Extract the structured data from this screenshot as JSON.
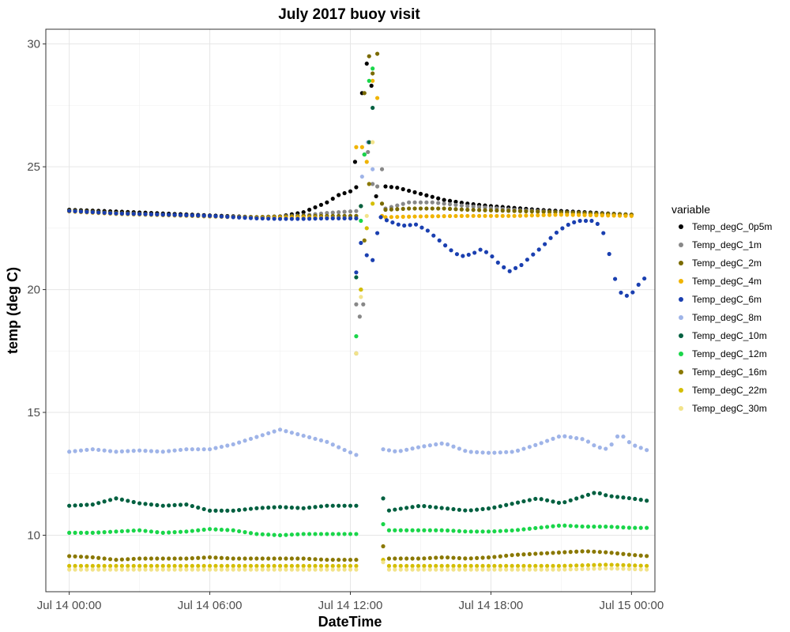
{
  "chart_data": {
    "type": "scatter",
    "title": "July 2017 buoy visit",
    "xlabel": "DateTime",
    "ylabel": "temp (deg C)",
    "x_unit": "hours",
    "xlim": [
      -1,
      25
    ],
    "ylim": [
      7.7,
      30.6
    ],
    "x_ticks": [
      {
        "value": 0,
        "label": "Jul 14 00:00"
      },
      {
        "value": 6,
        "label": "Jul 14 06:00"
      },
      {
        "value": 12,
        "label": "Jul 14 12:00"
      },
      {
        "value": 18,
        "label": "Jul 14 18:00"
      },
      {
        "value": 24,
        "label": "Jul 15 00:00"
      }
    ],
    "y_ticks": [
      10,
      15,
      20,
      25,
      30
    ],
    "grid": true,
    "legend_title": "variable",
    "legend_position": "right",
    "series": [
      {
        "name": "Temp_degC_0p5m",
        "color": "#000000",
        "points": [
          [
            0,
            23.25
          ],
          [
            2,
            23.18
          ],
          [
            4,
            23.1
          ],
          [
            6,
            23.02
          ],
          [
            8,
            22.95
          ],
          [
            9,
            22.98
          ],
          [
            10,
            23.15
          ],
          [
            11,
            23.55
          ],
          [
            11.5,
            23.85
          ],
          [
            12,
            24.0
          ],
          [
            12.3,
            24.2
          ],
          [
            12.6,
            24.3
          ],
          [
            13.0,
            24.35
          ],
          [
            13.2,
            24.4
          ],
          [
            13.5,
            24.2
          ],
          [
            14,
            24.15
          ],
          [
            15,
            23.9
          ],
          [
            16,
            23.65
          ],
          [
            17,
            23.5
          ],
          [
            18,
            23.4
          ],
          [
            20,
            23.25
          ],
          [
            22,
            23.15
          ],
          [
            24,
            23.05
          ]
        ],
        "spike": [
          [
            12.2,
            25.2
          ],
          [
            12.5,
            28.0
          ],
          [
            12.7,
            29.2
          ],
          [
            12.9,
            28.3
          ],
          [
            13.1,
            23.8
          ]
        ]
      },
      {
        "name": "Temp_degC_1m",
        "color": "#888888",
        "points": [
          [
            0,
            23.2
          ],
          [
            2,
            23.12
          ],
          [
            4,
            23.05
          ],
          [
            6,
            22.98
          ],
          [
            8,
            22.95
          ],
          [
            10,
            23.02
          ],
          [
            11,
            23.12
          ],
          [
            12.3,
            23.2
          ],
          [
            13.5,
            23.3
          ],
          [
            14.5,
            23.55
          ],
          [
            15.5,
            23.55
          ],
          [
            17,
            23.4
          ],
          [
            19,
            23.25
          ],
          [
            21,
            23.15
          ],
          [
            24,
            23.05
          ]
        ],
        "spike": [
          [
            12.25,
            19.4
          ],
          [
            12.4,
            18.9
          ],
          [
            12.55,
            19.4
          ],
          [
            12.75,
            25.6
          ],
          [
            12.95,
            24.3
          ],
          [
            13.15,
            24.2
          ],
          [
            13.35,
            24.9
          ]
        ]
      },
      {
        "name": "Temp_degC_2m",
        "color": "#7a6a00",
        "points": [
          [
            0,
            23.22
          ],
          [
            2,
            23.12
          ],
          [
            4,
            23.05
          ],
          [
            6,
            22.98
          ],
          [
            8,
            22.95
          ],
          [
            10,
            23.0
          ],
          [
            12.3,
            23.0
          ],
          [
            13.5,
            23.25
          ],
          [
            14.5,
            23.3
          ],
          [
            16,
            23.3
          ],
          [
            17,
            23.25
          ],
          [
            19,
            23.2
          ],
          [
            21,
            23.15
          ],
          [
            24,
            23.05
          ]
        ],
        "spike": [
          [
            12.25,
            17.4
          ],
          [
            12.45,
            23.4
          ],
          [
            12.6,
            28.0
          ],
          [
            12.8,
            29.5
          ],
          [
            12.95,
            28.8
          ],
          [
            13.15,
            29.6
          ],
          [
            13.35,
            23.5
          ]
        ]
      },
      {
        "name": "Temp_degC_4m",
        "color": "#f0b400",
        "points": [
          [
            0,
            23.18
          ],
          [
            2,
            23.08
          ],
          [
            4,
            23.03
          ],
          [
            6,
            22.98
          ],
          [
            8,
            22.92
          ],
          [
            10,
            22.95
          ],
          [
            12.3,
            22.9
          ],
          [
            13.5,
            22.95
          ],
          [
            15,
            22.98
          ],
          [
            17,
            23.0
          ],
          [
            19,
            23.0
          ],
          [
            21,
            23.05
          ],
          [
            24,
            23.0
          ]
        ],
        "spike": [
          [
            12.25,
            25.8
          ],
          [
            12.5,
            25.8
          ],
          [
            12.7,
            25.2
          ],
          [
            12.95,
            28.5
          ],
          [
            13.15,
            27.8
          ],
          [
            13.35,
            23.0
          ]
        ]
      },
      {
        "name": "Temp_degC_6m",
        "color": "#1a3fb0",
        "points": [
          [
            0,
            23.2
          ],
          [
            2,
            23.1
          ],
          [
            4,
            23.05
          ],
          [
            6,
            23.0
          ],
          [
            7,
            22.95
          ],
          [
            8,
            22.9
          ],
          [
            9,
            22.88
          ],
          [
            10,
            22.88
          ],
          [
            11,
            22.9
          ],
          [
            12.3,
            22.9
          ],
          [
            13.3,
            22.95
          ],
          [
            13.6,
            22.8
          ],
          [
            14.2,
            22.6
          ],
          [
            14.8,
            22.65
          ],
          [
            15.3,
            22.4
          ],
          [
            15.8,
            22.0
          ],
          [
            16.3,
            21.6
          ],
          [
            16.7,
            21.35
          ],
          [
            17.2,
            21.45
          ],
          [
            17.6,
            21.65
          ],
          [
            18.0,
            21.4
          ],
          [
            18.4,
            21.0
          ],
          [
            18.8,
            20.75
          ],
          [
            19.3,
            21.0
          ],
          [
            19.7,
            21.35
          ],
          [
            20.2,
            21.75
          ],
          [
            20.7,
            22.25
          ],
          [
            21.2,
            22.6
          ],
          [
            21.7,
            22.8
          ],
          [
            22.3,
            22.8
          ],
          [
            22.7,
            22.6
          ],
          [
            23.0,
            21.7
          ],
          [
            23.2,
            20.7
          ],
          [
            23.5,
            19.9
          ],
          [
            23.9,
            19.7
          ],
          [
            24.3,
            20.2
          ],
          [
            24.7,
            20.6
          ]
        ],
        "spike": [
          [
            12.25,
            20.7
          ],
          [
            12.45,
            21.9
          ],
          [
            12.7,
            21.4
          ],
          [
            12.95,
            21.2
          ],
          [
            13.15,
            22.3
          ]
        ]
      },
      {
        "name": "Temp_degC_8m",
        "color": "#9fb4e8",
        "points": [
          [
            0,
            13.4
          ],
          [
            1,
            13.5
          ],
          [
            2,
            13.4
          ],
          [
            3,
            13.45
          ],
          [
            4,
            13.4
          ],
          [
            5,
            13.5
          ],
          [
            6,
            13.5
          ],
          [
            7,
            13.7
          ],
          [
            8,
            14.0
          ],
          [
            9,
            14.3
          ],
          [
            10,
            14.05
          ],
          [
            11,
            13.8
          ],
          [
            11.8,
            13.45
          ],
          [
            12.3,
            13.25
          ],
          [
            13.4,
            13.5
          ],
          [
            14,
            13.4
          ],
          [
            15,
            13.6
          ],
          [
            16,
            13.75
          ],
          [
            17,
            13.4
          ],
          [
            18,
            13.35
          ],
          [
            19,
            13.4
          ],
          [
            20,
            13.7
          ],
          [
            21,
            14.05
          ],
          [
            22,
            13.9
          ],
          [
            22.5,
            13.6
          ],
          [
            23,
            13.5
          ],
          [
            23.5,
            14.15
          ],
          [
            24,
            13.7
          ],
          [
            24.7,
            13.45
          ]
        ],
        "spike": [
          [
            12.5,
            24.6
          ],
          [
            12.75,
            26.0
          ],
          [
            12.95,
            24.9
          ]
        ]
      },
      {
        "name": "Temp_degC_10m",
        "color": "#006040",
        "points": [
          [
            0,
            11.2
          ],
          [
            1,
            11.25
          ],
          [
            2,
            11.5
          ],
          [
            3,
            11.3
          ],
          [
            4,
            11.2
          ],
          [
            5,
            11.25
          ],
          [
            6,
            11.0
          ],
          [
            7,
            11.0
          ],
          [
            8,
            11.1
          ],
          [
            9,
            11.15
          ],
          [
            10,
            11.1
          ],
          [
            11,
            11.2
          ],
          [
            12.3,
            11.2
          ],
          [
            13.4,
            11.5
          ],
          [
            13.6,
            11.0
          ],
          [
            15,
            11.2
          ],
          [
            16,
            11.1
          ],
          [
            17,
            11.0
          ],
          [
            18,
            11.1
          ],
          [
            19,
            11.3
          ],
          [
            20,
            11.5
          ],
          [
            21,
            11.3
          ],
          [
            22,
            11.6
          ],
          [
            22.5,
            11.75
          ],
          [
            23,
            11.6
          ],
          [
            24,
            11.5
          ],
          [
            24.7,
            11.4
          ]
        ],
        "spike": [
          [
            12.25,
            20.5
          ],
          [
            12.45,
            23.4
          ],
          [
            12.6,
            25.5
          ],
          [
            12.8,
            26.0
          ],
          [
            12.95,
            27.4
          ]
        ]
      },
      {
        "name": "Temp_degC_12m",
        "color": "#1ad64a",
        "points": [
          [
            0,
            10.1
          ],
          [
            1,
            10.1
          ],
          [
            2,
            10.15
          ],
          [
            3,
            10.2
          ],
          [
            4,
            10.1
          ],
          [
            5,
            10.15
          ],
          [
            6,
            10.25
          ],
          [
            7,
            10.2
          ],
          [
            8,
            10.05
          ],
          [
            9,
            10.0
          ],
          [
            10,
            10.05
          ],
          [
            11,
            10.05
          ],
          [
            12.3,
            10.05
          ],
          [
            13.4,
            10.45
          ],
          [
            13.6,
            10.2
          ],
          [
            15,
            10.2
          ],
          [
            16,
            10.2
          ],
          [
            17,
            10.15
          ],
          [
            18,
            10.15
          ],
          [
            19,
            10.2
          ],
          [
            20,
            10.3
          ],
          [
            21,
            10.4
          ],
          [
            22,
            10.35
          ],
          [
            23,
            10.35
          ],
          [
            24,
            10.3
          ],
          [
            24.7,
            10.3
          ]
        ],
        "spike": [
          [
            12.25,
            18.1
          ],
          [
            12.45,
            22.8
          ],
          [
            12.6,
            25.5
          ],
          [
            12.8,
            28.5
          ],
          [
            12.95,
            29.0
          ]
        ]
      },
      {
        "name": "Temp_degC_16m",
        "color": "#8a7800",
        "points": [
          [
            0,
            9.15
          ],
          [
            1,
            9.1
          ],
          [
            2,
            9.0
          ],
          [
            3,
            9.05
          ],
          [
            4,
            9.05
          ],
          [
            5,
            9.05
          ],
          [
            6,
            9.1
          ],
          [
            7,
            9.05
          ],
          [
            8,
            9.05
          ],
          [
            9,
            9.05
          ],
          [
            10,
            9.05
          ],
          [
            11,
            9.0
          ],
          [
            12.3,
            9.0
          ],
          [
            13.4,
            9.55
          ],
          [
            13.6,
            9.05
          ],
          [
            15,
            9.05
          ],
          [
            16,
            9.1
          ],
          [
            17,
            9.05
          ],
          [
            18,
            9.1
          ],
          [
            19,
            9.2
          ],
          [
            20,
            9.25
          ],
          [
            21,
            9.3
          ],
          [
            22,
            9.35
          ],
          [
            23,
            9.3
          ],
          [
            24,
            9.2
          ],
          [
            24.7,
            9.15
          ]
        ],
        "spike": [
          [
            12.45,
            20.0
          ],
          [
            12.6,
            22.0
          ],
          [
            12.8,
            24.3
          ]
        ]
      },
      {
        "name": "Temp_degC_22m",
        "color": "#d4be00",
        "points": [
          [
            0,
            8.75
          ],
          [
            2,
            8.75
          ],
          [
            4,
            8.75
          ],
          [
            6,
            8.75
          ],
          [
            8,
            8.75
          ],
          [
            10,
            8.75
          ],
          [
            12.3,
            8.75
          ],
          [
            13.4,
            9.0
          ],
          [
            13.6,
            8.75
          ],
          [
            15,
            8.75
          ],
          [
            17,
            8.75
          ],
          [
            19,
            8.75
          ],
          [
            21,
            8.75
          ],
          [
            23,
            8.8
          ],
          [
            24.7,
            8.75
          ]
        ],
        "spike": [
          [
            12.45,
            20.0
          ],
          [
            12.7,
            22.5
          ],
          [
            12.95,
            23.5
          ]
        ]
      },
      {
        "name": "Temp_degC_30m",
        "color": "#f2e38a",
        "points": [
          [
            0,
            8.6
          ],
          [
            2,
            8.6
          ],
          [
            4,
            8.6
          ],
          [
            6,
            8.6
          ],
          [
            8,
            8.6
          ],
          [
            10,
            8.6
          ],
          [
            12.3,
            8.6
          ],
          [
            13.4,
            8.9
          ],
          [
            13.6,
            8.6
          ],
          [
            15,
            8.6
          ],
          [
            17,
            8.6
          ],
          [
            19,
            8.6
          ],
          [
            21,
            8.6
          ],
          [
            23,
            8.65
          ],
          [
            24.7,
            8.6
          ]
        ],
        "spike": [
          [
            12.25,
            17.4
          ],
          [
            12.45,
            19.7
          ],
          [
            12.7,
            23.0
          ],
          [
            12.95,
            26.0
          ]
        ]
      }
    ]
  }
}
